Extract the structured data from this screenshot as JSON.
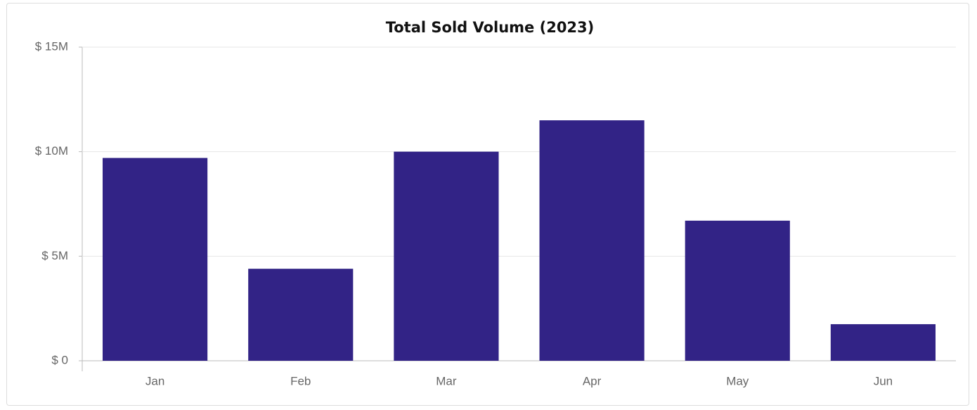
{
  "chart_data": {
    "type": "bar",
    "title": "Total Sold Volume (2023)",
    "categories": [
      "Jan",
      "Feb",
      "Mar",
      "Apr",
      "May",
      "Jun"
    ],
    "values": [
      9700000,
      4400000,
      10000000,
      11500000,
      6700000,
      1750000
    ],
    "color": "#322386",
    "ylim": [
      0,
      15000000
    ],
    "yticks": [
      {
        "value": 0,
        "label": "$ 0"
      },
      {
        "value": 5000000,
        "label": "$ 5M"
      },
      {
        "value": 10000000,
        "label": "$ 10M"
      },
      {
        "value": 15000000,
        "label": "$ 15M"
      }
    ],
    "grid": true
  }
}
